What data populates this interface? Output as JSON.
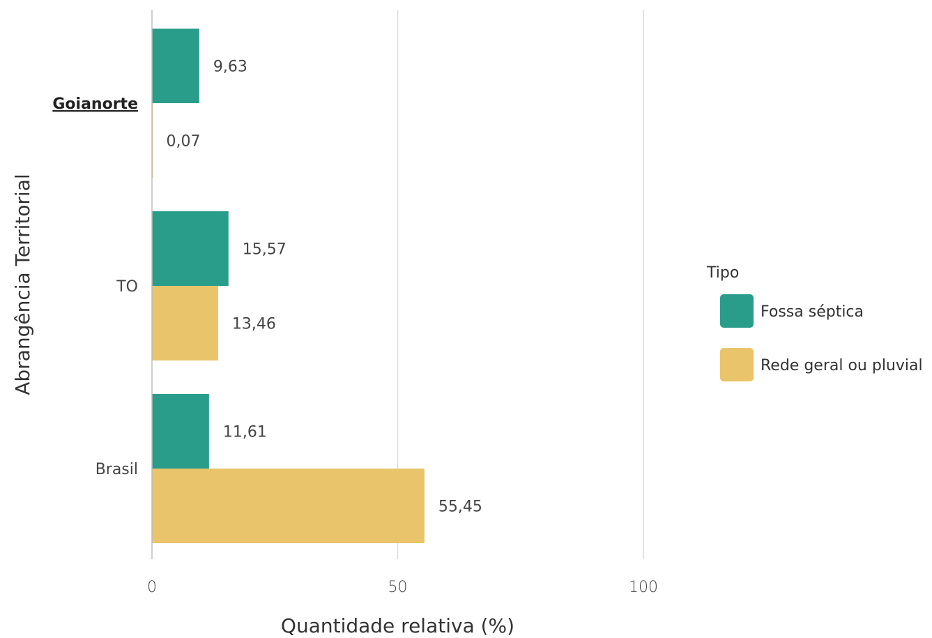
{
  "chart_data": {
    "type": "bar",
    "orientation": "horizontal",
    "categories": [
      "Goianorte",
      "TO",
      "Brasil"
    ],
    "highlighted_category": "Goianorte",
    "series": [
      {
        "name": "Fossa séptica",
        "color": "#2a9d8a",
        "values": [
          9.63,
          15.57,
          11.61
        ],
        "labels": [
          "9,63",
          "15,57",
          "11,61"
        ]
      },
      {
        "name": "Rede geral ou pluvial",
        "color": "#e9c46a",
        "values": [
          0.07,
          13.46,
          55.45
        ],
        "labels": [
          "0,07",
          "13,46",
          "55,45"
        ]
      }
    ],
    "xlabel": "Quantidade relativa (%)",
    "ylabel": "Abrangência Territorial",
    "xlim": [
      0,
      100
    ],
    "xticks": [
      0,
      50,
      100
    ],
    "xtick_labels": [
      "0",
      "50",
      "100"
    ],
    "grid": "vertical",
    "legend": {
      "title": "Tipo",
      "position": "right"
    }
  }
}
